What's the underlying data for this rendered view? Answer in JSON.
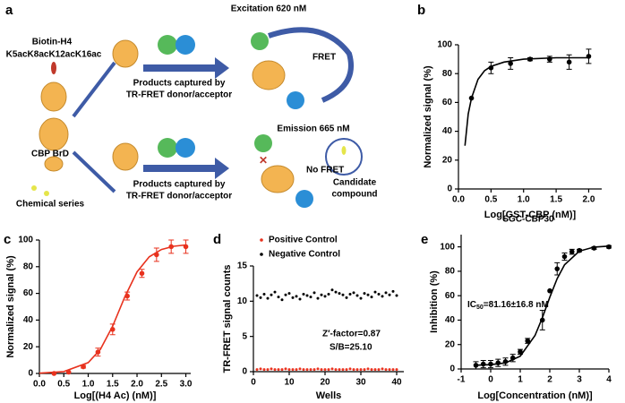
{
  "schematic": {
    "label": "a",
    "texts": [
      "Biotin-H4",
      "K5acK8acK12acK16ac",
      "CBP BrD",
      "Chemical series",
      "Excitation 620 nM",
      "FRET",
      "Products captured by",
      "TR-FRET donor/acceptor",
      "Emission 665 nM",
      "Candidate",
      "compound",
      "Products captured by",
      "TR-FRET donor/acceptor",
      "No FRET"
    ]
  },
  "chart_data": [
    {
      "type": "dose_response",
      "label": "b",
      "xlabel": "Log[GST-CBP (nM)]",
      "ylabel": "Normalized signal (%)",
      "color": "#000000",
      "xlim": [
        0,
        2.2
      ],
      "xticks": [
        {
          "value": 0,
          "label": "0.0"
        },
        0.5,
        {
          "value": 1,
          "label": "1.0"
        },
        1.5,
        {
          "value": 2,
          "label": "2.0"
        }
      ],
      "ylim": [
        0,
        100
      ],
      "yticks": [
        0,
        20,
        40,
        60,
        80,
        100
      ],
      "series": [
        {
          "color": "#000000",
          "x": [
            0.2,
            0.5,
            0.8,
            1.1,
            1.4,
            1.7,
            2.0
          ],
          "values": [
            63,
            84,
            87,
            90,
            90,
            88,
            92
          ],
          "errors": [
            0,
            4,
            4,
            1,
            2,
            5,
            5
          ]
        }
      ],
      "fit": {
        "color": "#000000",
        "x": [
          0.1,
          0.15,
          0.2,
          0.3,
          0.4,
          0.5,
          0.7,
          1.0,
          1.5,
          2.0
        ],
        "values": [
          30,
          52,
          63,
          76,
          82,
          85,
          88,
          90,
          91,
          91
        ]
      }
    },
    {
      "type": "dose_response",
      "label": "c",
      "xlabel": "Log[(H4 Ac) (nM)]",
      "ylabel": "Normalized signal (%)",
      "color": "#e8321e",
      "xlim": [
        0,
        3.1
      ],
      "xticks": [
        {
          "value": 0,
          "label": "0.0"
        },
        0.5,
        {
          "value": 1,
          "label": "1.0"
        },
        1.5,
        {
          "value": 2,
          "label": "2.0"
        },
        2.5,
        {
          "value": 3,
          "label": "3.0"
        }
      ],
      "ylim": [
        0,
        100
      ],
      "yticks": [
        0,
        20,
        40,
        60,
        80,
        100
      ],
      "series": [
        {
          "color": "#e8321e",
          "x": [
            0.3,
            0.6,
            0.9,
            1.2,
            1.5,
            1.8,
            2.1,
            2.4,
            2.7,
            3.0
          ],
          "values": [
            0,
            1,
            5,
            16,
            33,
            58,
            75,
            89,
            95,
            95
          ],
          "errors": [
            0,
            0,
            1,
            3,
            4,
            3,
            3,
            5,
            5,
            5
          ]
        }
      ],
      "fit": {
        "color": "#e8321e",
        "x": [
          0,
          0.5,
          1.0,
          1.25,
          1.5,
          1.75,
          2.0,
          2.25,
          2.5,
          2.75,
          3.0
        ],
        "values": [
          0.2,
          1.4,
          8.1,
          18.1,
          35.4,
          57.4,
          76.1,
          87.4,
          92.9,
          95.3,
          96.3
        ]
      }
    },
    {
      "type": "scatter",
      "label": "d",
      "xlabel": "Wells",
      "ylabel": "TR-FRET signal counts",
      "annotations": [
        "Z′-factor=0.87",
        "S/B=25.10"
      ],
      "xlim": [
        0,
        42
      ],
      "xticks": [
        0,
        10,
        20,
        30,
        40
      ],
      "ylim": [
        0,
        15
      ],
      "yticks": [
        0,
        5,
        10,
        15
      ],
      "x": [
        1,
        2,
        3,
        4,
        5,
        6,
        7,
        8,
        9,
        10,
        11,
        12,
        13,
        14,
        15,
        16,
        17,
        18,
        19,
        20,
        21,
        22,
        23,
        24,
        25,
        26,
        27,
        28,
        29,
        30,
        31,
        32,
        33,
        34,
        35,
        36,
        37,
        38,
        39,
        40
      ],
      "series": [
        {
          "name": "Positive Control",
          "color": "#e8321e",
          "values": [
            0.3,
            0.4,
            0.3,
            0.3,
            0.4,
            0.3,
            0.3,
            0.3,
            0.4,
            0.3,
            0.3,
            0.3,
            0.4,
            0.3,
            0.3,
            0.3,
            0.3,
            0.4,
            0.3,
            0.3,
            0.3,
            0.4,
            0.3,
            0.3,
            0.3,
            0.3,
            0.4,
            0.3,
            0.3,
            0.3,
            0.3,
            0.4,
            0.3,
            0.3,
            0.3,
            0.4,
            0.3,
            0.3,
            0.3,
            0.3
          ]
        },
        {
          "name": "Negative Control",
          "color": "#000000",
          "values": [
            10.8,
            10.5,
            11.0,
            10.4,
            10.9,
            11.3,
            10.6,
            10.2,
            10.9,
            11.1,
            10.5,
            10.7,
            10.3,
            11.0,
            10.8,
            10.6,
            11.2,
            10.4,
            10.9,
            10.7,
            11.0,
            11.6,
            11.3,
            11.1,
            10.9,
            10.5,
            11.0,
            11.2,
            10.8,
            10.4,
            11.1,
            10.9,
            10.6,
            11.3,
            11.0,
            10.7,
            11.2,
            10.9,
            11.4,
            10.8
          ]
        }
      ]
    },
    {
      "type": "dose_response",
      "label": "e",
      "title": "SGC-CBP30",
      "xlabel": "Log[Concentration (nM)]",
      "ylabel": "Inhibition (%)",
      "annotation_parts": [
        "IC",
        "50",
        "=81.16±16.8 nM"
      ],
      "xlim": [
        -1,
        4
      ],
      "xticks": [
        -1,
        0,
        1,
        2,
        3,
        4
      ],
      "ylim": [
        0,
        110
      ],
      "yticks": [
        0,
        20,
        40,
        60,
        80,
        100
      ],
      "series": [
        {
          "color": "#000000",
          "x": [
            -0.5,
            -0.25,
            0,
            0.25,
            0.5,
            0.75,
            1.0,
            1.25,
            1.75,
            2.0,
            2.25,
            2.5,
            2.75,
            3.0,
            3.5,
            4.0
          ],
          "values": [
            3,
            4,
            4,
            5,
            6,
            9,
            14,
            23,
            40,
            64,
            82,
            92,
            96,
            97,
            99,
            100
          ],
          "errors": [
            3,
            3,
            3,
            3,
            3,
            3,
            2,
            2,
            8,
            0,
            5,
            3,
            2,
            1,
            1,
            1
          ]
        }
      ],
      "fit": {
        "color": "#000000",
        "x": [
          -0.5,
          0,
          0.5,
          1.0,
          1.5,
          1.75,
          2.0,
          2.25,
          2.5,
          3.0,
          3.5,
          4.0
        ],
        "values": [
          3.1,
          3.5,
          5.0,
          10.5,
          27.4,
          42,
          58.7,
          74,
          85.3,
          96.5,
          99.8,
          100.6
        ]
      }
    }
  ]
}
